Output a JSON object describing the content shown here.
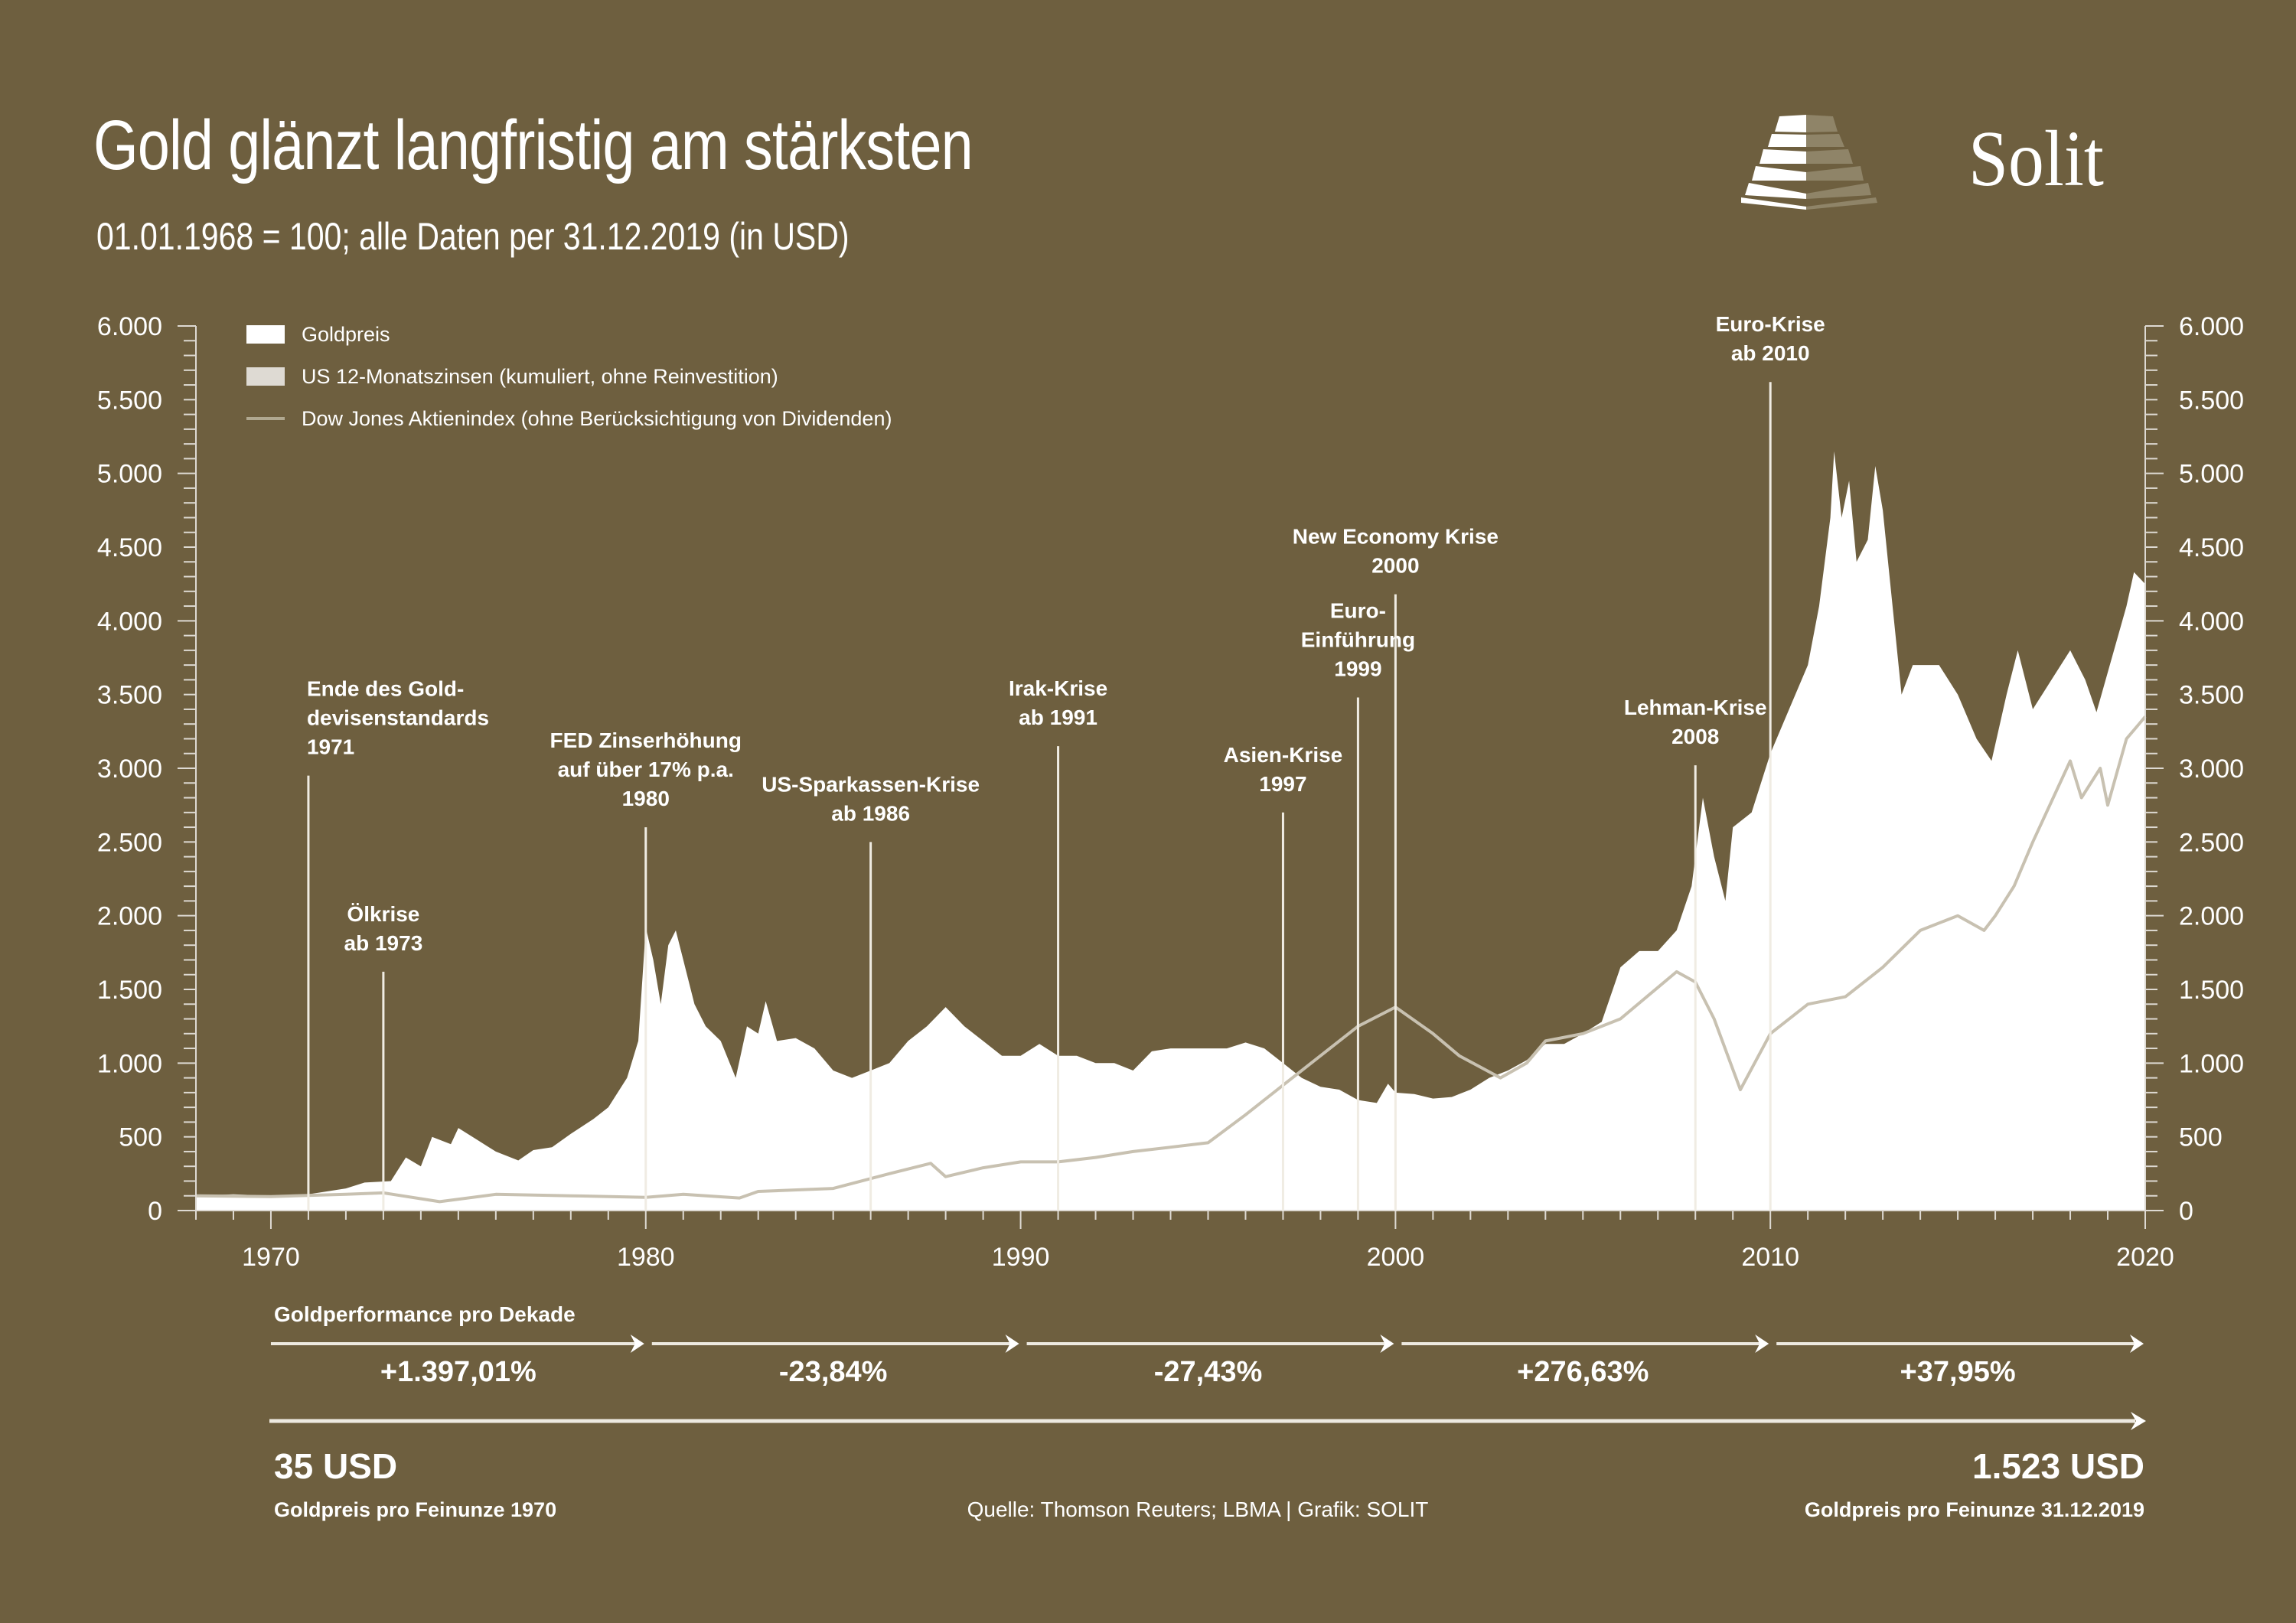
{
  "header": {
    "title": "Gold glänzt langfristig am stärksten",
    "subtitle": "01.01.1968 = 100; alle Daten per 31.12.2019 (in USD)",
    "brand": "Solit"
  },
  "colors": {
    "background": "#6e5f3f",
    "gold": "#ffffff",
    "rates": "#dedad3",
    "dow": "#c8c1b1",
    "axis": "#dedad3"
  },
  "chart_data": {
    "type": "area",
    "title": "Gold glänzt langfristig am stärksten",
    "subtitle": "01.01.1968 = 100; alle Daten per 31.12.2019 (in USD)",
    "xlabel": "",
    "ylabel": "",
    "xlim": [
      1968,
      2020
    ],
    "ylim": [
      0,
      6000
    ],
    "x_ticks": [
      1970,
      1980,
      1990,
      2000,
      2010,
      2020
    ],
    "y_ticks": [
      0,
      500,
      1000,
      1500,
      2000,
      2500,
      3000,
      3500,
      4000,
      4500,
      5000,
      5500,
      6000
    ],
    "y_tick_labels": [
      "0",
      "500",
      "1.000",
      "1.500",
      "2.000",
      "2.500",
      "3.000",
      "3.500",
      "4.000",
      "4.500",
      "5.000",
      "5.500",
      "6.000"
    ],
    "grid": false,
    "legend_position": "top-left",
    "legend": [
      {
        "label": "Goldpreis",
        "kind": "area"
      },
      {
        "label": "US 12-Monatszinsen (kumuliert, ohne Reinvestition)",
        "kind": "area"
      },
      {
        "label": "Dow Jones Aktienindex (ohne Berücksichtigung von Dividenden)",
        "kind": "line"
      }
    ],
    "series": [
      {
        "name": "Goldpreis",
        "type": "area",
        "points": [
          [
            1968,
            100
          ],
          [
            1969,
            110
          ],
          [
            1970,
            100
          ],
          [
            1971,
            110
          ],
          [
            1972,
            150
          ],
          [
            1972.5,
            190
          ],
          [
            1973.2,
            200
          ],
          [
            1973.6,
            360
          ],
          [
            1974,
            300
          ],
          [
            1974.3,
            500
          ],
          [
            1974.8,
            450
          ],
          [
            1975,
            560
          ],
          [
            1975.5,
            480
          ],
          [
            1976,
            400
          ],
          [
            1976.6,
            340
          ],
          [
            1977,
            410
          ],
          [
            1977.5,
            430
          ],
          [
            1978,
            520
          ],
          [
            1978.6,
            620
          ],
          [
            1979,
            700
          ],
          [
            1979.5,
            900
          ],
          [
            1979.8,
            1150
          ],
          [
            1980,
            1920
          ],
          [
            1980.2,
            1700
          ],
          [
            1980.4,
            1400
          ],
          [
            1980.6,
            1800
          ],
          [
            1980.8,
            1900
          ],
          [
            1981,
            1700
          ],
          [
            1981.3,
            1400
          ],
          [
            1981.6,
            1250
          ],
          [
            1982,
            1150
          ],
          [
            1982.4,
            900
          ],
          [
            1982.7,
            1250
          ],
          [
            1983,
            1200
          ],
          [
            1983.2,
            1420
          ],
          [
            1983.5,
            1150
          ],
          [
            1984,
            1170
          ],
          [
            1984.5,
            1100
          ],
          [
            1985,
            950
          ],
          [
            1985.5,
            900
          ],
          [
            1986,
            950
          ],
          [
            1986.5,
            1000
          ],
          [
            1987,
            1150
          ],
          [
            1987.5,
            1250
          ],
          [
            1988,
            1380
          ],
          [
            1988.5,
            1250
          ],
          [
            1989,
            1150
          ],
          [
            1989.5,
            1050
          ],
          [
            1990,
            1050
          ],
          [
            1990.5,
            1130
          ],
          [
            1991,
            1050
          ],
          [
            1991.5,
            1050
          ],
          [
            1992,
            1000
          ],
          [
            1992.5,
            1000
          ],
          [
            1993,
            950
          ],
          [
            1993.5,
            1080
          ],
          [
            1994,
            1100
          ],
          [
            1994.5,
            1100
          ],
          [
            1995,
            1100
          ],
          [
            1995.5,
            1100
          ],
          [
            1996,
            1140
          ],
          [
            1996.5,
            1100
          ],
          [
            1997,
            1000
          ],
          [
            1997.5,
            900
          ],
          [
            1998,
            840
          ],
          [
            1998.5,
            820
          ],
          [
            1999,
            750
          ],
          [
            1999.5,
            730
          ],
          [
            1999.8,
            860
          ],
          [
            2000,
            800
          ],
          [
            2000.5,
            790
          ],
          [
            2001,
            760
          ],
          [
            2001.5,
            770
          ],
          [
            2002,
            820
          ],
          [
            2002.5,
            900
          ],
          [
            2003,
            950
          ],
          [
            2003.5,
            1020
          ],
          [
            2004,
            1130
          ],
          [
            2004.5,
            1130
          ],
          [
            2005,
            1200
          ],
          [
            2005.5,
            1280
          ],
          [
            2006,
            1650
          ],
          [
            2006.5,
            1760
          ],
          [
            2007,
            1760
          ],
          [
            2007.5,
            1900
          ],
          [
            2007.9,
            2200
          ],
          [
            2008.2,
            2800
          ],
          [
            2008.5,
            2400
          ],
          [
            2008.8,
            2100
          ],
          [
            2009,
            2600
          ],
          [
            2009.5,
            2700
          ],
          [
            2010,
            3100
          ],
          [
            2010.5,
            3400
          ],
          [
            2011,
            3700
          ],
          [
            2011.3,
            4100
          ],
          [
            2011.6,
            4700
          ],
          [
            2011.7,
            5150
          ],
          [
            2011.9,
            4700
          ],
          [
            2012.1,
            4950
          ],
          [
            2012.3,
            4400
          ],
          [
            2012.6,
            4550
          ],
          [
            2012.8,
            5050
          ],
          [
            2013,
            4750
          ],
          [
            2013.3,
            4000
          ],
          [
            2013.5,
            3500
          ],
          [
            2013.8,
            3700
          ],
          [
            2014,
            3700
          ],
          [
            2014.5,
            3700
          ],
          [
            2015,
            3500
          ],
          [
            2015.5,
            3200
          ],
          [
            2015.9,
            3050
          ],
          [
            2016.3,
            3500
          ],
          [
            2016.6,
            3800
          ],
          [
            2017,
            3400
          ],
          [
            2017.5,
            3600
          ],
          [
            2018,
            3800
          ],
          [
            2018.4,
            3600
          ],
          [
            2018.7,
            3380
          ],
          [
            2019,
            3650
          ],
          [
            2019.5,
            4100
          ],
          [
            2019.7,
            4330
          ],
          [
            2020,
            4250
          ]
        ]
      },
      {
        "name": "US 12-Monatszinsen (kumuliert, ohne Reinvestition)",
        "type": "area",
        "points": [
          [
            1968,
            100
          ],
          [
            1975,
            140
          ],
          [
            1980,
            200
          ],
          [
            1985,
            290
          ],
          [
            1990,
            360
          ],
          [
            1995,
            410
          ],
          [
            2000,
            460
          ],
          [
            2005,
            490
          ],
          [
            2010,
            520
          ],
          [
            2015,
            525
          ],
          [
            2020,
            540
          ]
        ]
      },
      {
        "name": "Dow Jones Aktienindex (ohne Berücksichtigung von Dividenden)",
        "type": "line",
        "points": [
          [
            1968,
            100
          ],
          [
            1970,
            95
          ],
          [
            1972,
            110
          ],
          [
            1973,
            120
          ],
          [
            1974.5,
            60
          ],
          [
            1976,
            110
          ],
          [
            1978,
            100
          ],
          [
            1980,
            90
          ],
          [
            1981,
            110
          ],
          [
            1982.5,
            85
          ],
          [
            1983,
            130
          ],
          [
            1985,
            150
          ],
          [
            1986.5,
            250
          ],
          [
            1987.6,
            320
          ],
          [
            1988,
            230
          ],
          [
            1989,
            290
          ],
          [
            1990,
            330
          ],
          [
            1991,
            330
          ],
          [
            1992,
            360
          ],
          [
            1993,
            400
          ],
          [
            1994,
            430
          ],
          [
            1995,
            460
          ],
          [
            1996,
            650
          ],
          [
            1997,
            850
          ],
          [
            1998,
            1050
          ],
          [
            1999,
            1250
          ],
          [
            2000,
            1380
          ],
          [
            2001,
            1200
          ],
          [
            2001.7,
            1050
          ],
          [
            2002.8,
            900
          ],
          [
            2003.5,
            1000
          ],
          [
            2004,
            1150
          ],
          [
            2005,
            1200
          ],
          [
            2006,
            1300
          ],
          [
            2007.5,
            1620
          ],
          [
            2008,
            1550
          ],
          [
            2008.5,
            1300
          ],
          [
            2009.2,
            820
          ],
          [
            2010,
            1200
          ],
          [
            2011,
            1400
          ],
          [
            2012,
            1450
          ],
          [
            2013,
            1650
          ],
          [
            2014,
            1900
          ],
          [
            2015,
            2000
          ],
          [
            2015.7,
            1900
          ],
          [
            2016,
            2000
          ],
          [
            2016.5,
            2200
          ],
          [
            2017,
            2500
          ],
          [
            2018,
            3050
          ],
          [
            2018.3,
            2800
          ],
          [
            2018.8,
            3000
          ],
          [
            2019,
            2750
          ],
          [
            2019.5,
            3200
          ],
          [
            2020,
            3350
          ]
        ]
      }
    ],
    "annotations": [
      {
        "year": 1971,
        "value": 2950,
        "lines": [
          "Ende des Gold-",
          "devisenstandards",
          "1971"
        ],
        "align": "start"
      },
      {
        "year": 1973,
        "value": 1620,
        "lines": [
          "Ölkrise",
          "ab 1973"
        ],
        "align": "middle"
      },
      {
        "year": 1980,
        "value": 2600,
        "lines": [
          "FED Zinserhöhung",
          "auf über 17% p.a.",
          "1980"
        ],
        "align": "middle"
      },
      {
        "year": 1986,
        "value": 2500,
        "lines": [
          "US-Sparkassen-Krise",
          "ab 1986"
        ],
        "align": "middle"
      },
      {
        "year": 1991,
        "value": 3150,
        "lines": [
          "Irak-Krise",
          "ab 1991"
        ],
        "align": "middle"
      },
      {
        "year": 1997,
        "value": 2700,
        "lines": [
          "Asien-Krise",
          "1997"
        ],
        "align": "middle"
      },
      {
        "year": 1999,
        "value": 3480,
        "lines": [
          "Euro-",
          "Einführung",
          "1999"
        ],
        "align": "middle"
      },
      {
        "year": 2000,
        "value": 4180,
        "lines": [
          "New Economy Krise",
          "2000"
        ],
        "align": "middle"
      },
      {
        "year": 2008,
        "value": 3020,
        "lines": [
          "Lehman-Krise",
          "2008"
        ],
        "align": "middle"
      },
      {
        "year": 2010,
        "value": 5620,
        "lines": [
          "Euro-Krise",
          "ab 2010"
        ],
        "align": "middle"
      }
    ]
  },
  "performance": {
    "label": "Goldperformance pro Dekade",
    "decades": [
      {
        "from": 1970,
        "to": 1980,
        "value": "+1.397,01%"
      },
      {
        "from": 1980,
        "to": 1990,
        "value": "-23,84%"
      },
      {
        "from": 1990,
        "to": 2000,
        "value": "-27,43%"
      },
      {
        "from": 2000,
        "to": 2010,
        "value": "+276,63%"
      },
      {
        "from": 2010,
        "to": 2020,
        "value": "+37,95%"
      }
    ]
  },
  "footer": {
    "start_price": "35 USD",
    "start_caption": "Goldpreis pro Feinunze 1970",
    "end_price": "1.523 USD",
    "end_caption": "Goldpreis pro Feinunze 31.12.2019",
    "source": "Quelle: Thomson Reuters; LBMA  |  Grafik: SOLIT"
  }
}
